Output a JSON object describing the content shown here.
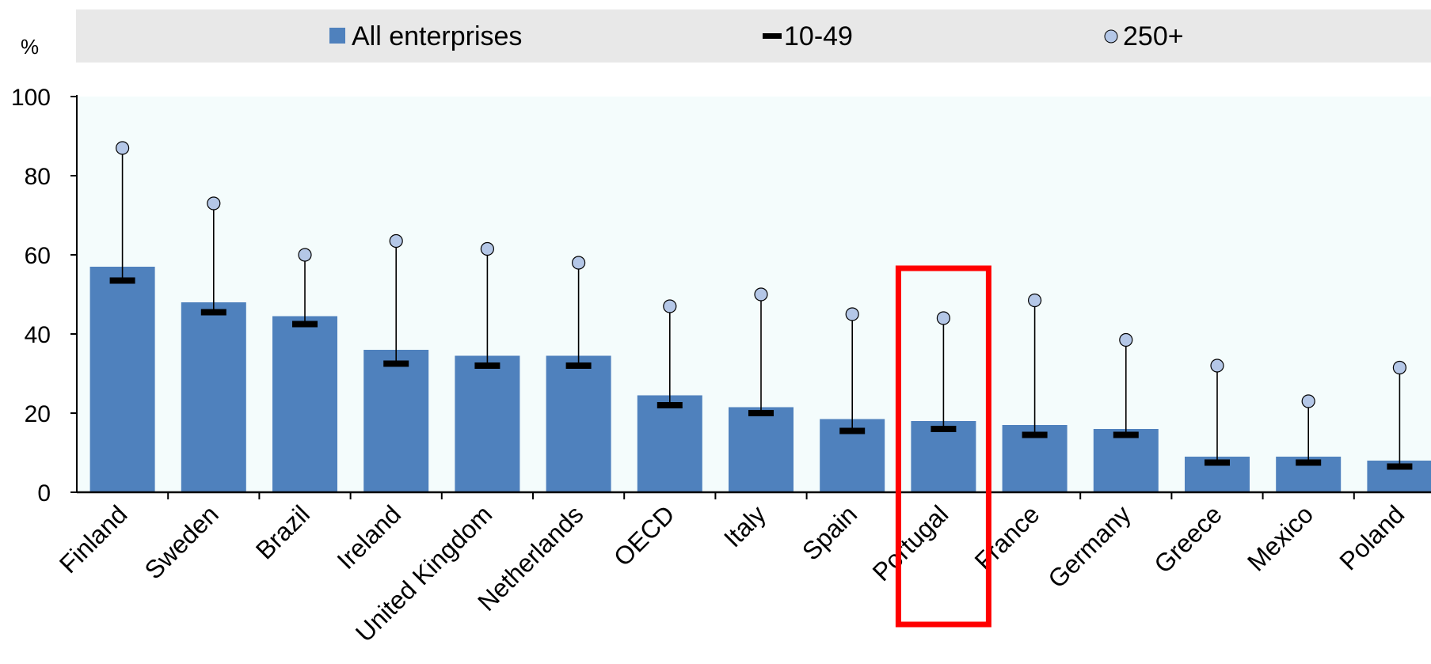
{
  "chart_data": {
    "type": "bar",
    "ylabel": "%",
    "ylim": [
      0,
      100
    ],
    "yticks": [
      0,
      20,
      40,
      60,
      80,
      100
    ],
    "legend_position": "top",
    "categories": [
      "Finland",
      "Sweden",
      "Brazil",
      "Ireland",
      "United Kingdom",
      "Netherlands",
      "OECD",
      "Italy",
      "Spain",
      "Portugal",
      "France",
      "Germany",
      "Greece",
      "Mexico",
      "Poland"
    ],
    "series": [
      {
        "name": "All enterprises",
        "kind": "bar",
        "color": "#4f81bd",
        "values": [
          57,
          48,
          44.5,
          36,
          34.5,
          34.5,
          24.5,
          21.5,
          18.5,
          18,
          17,
          16,
          9,
          9,
          8
        ]
      },
      {
        "name": "10-49",
        "kind": "dash",
        "color": "#000000",
        "values": [
          53.5,
          45.5,
          42.5,
          32.5,
          32,
          32,
          22,
          20,
          15.5,
          16,
          14.5,
          14.5,
          7.5,
          7.5,
          6.5
        ]
      },
      {
        "name": "250+",
        "kind": "circle",
        "color": "#b4c7e7",
        "values": [
          87,
          73,
          60,
          63.5,
          61.5,
          58,
          47,
          50,
          45,
          44,
          48.5,
          38.5,
          32,
          23,
          31.5
        ]
      }
    ],
    "highlight": {
      "category": "Portugal",
      "color": "#ff0000"
    }
  }
}
